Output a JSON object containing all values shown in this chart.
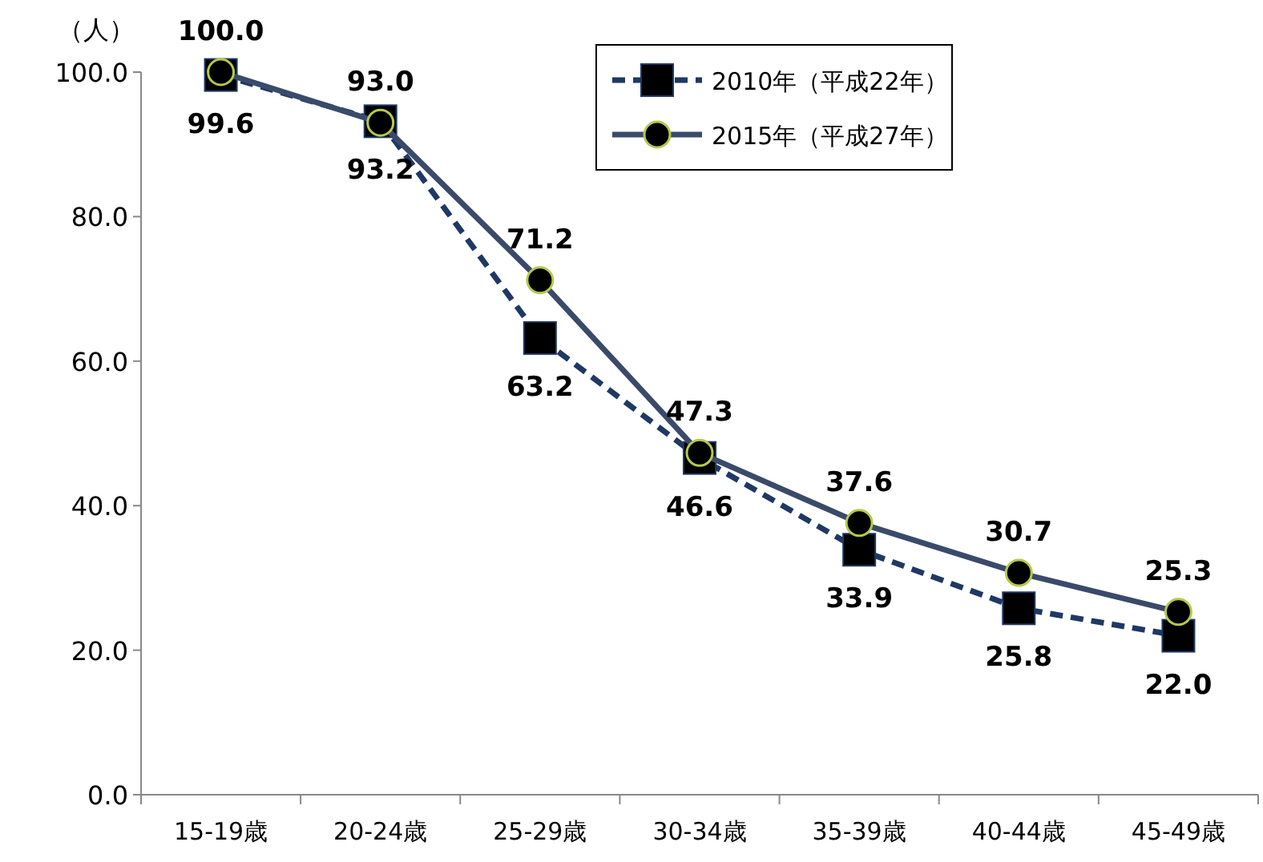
{
  "chart_data": {
    "type": "line",
    "ylabel": "（人）",
    "categories": [
      "15-19歳",
      "20-24歳",
      "25-29歳",
      "30-34歳",
      "35-39歳",
      "40-44歳",
      "45-49歳"
    ],
    "ylim": [
      0,
      100
    ],
    "yticks": [
      {
        "value": 0,
        "label": "0.0"
      },
      {
        "value": 20,
        "label": "20.0"
      },
      {
        "value": 40,
        "label": "40.0"
      },
      {
        "value": 60,
        "label": "60.0"
      },
      {
        "value": 80,
        "label": "80.0"
      },
      {
        "value": 100,
        "label": "100.0"
      }
    ],
    "series": [
      {
        "name": "2010年（平成22年）",
        "color": "#1f3864",
        "marker": "square",
        "line_style": "dashed",
        "values": [
          99.6,
          93.2,
          63.2,
          46.6,
          33.9,
          25.8,
          22.0
        ],
        "value_labels": [
          "99.6",
          "93.2",
          "63.2",
          "46.6",
          "33.9",
          "25.8",
          "22.0"
        ]
      },
      {
        "name": "2015年（平成27年）",
        "color": "#3a4a6a",
        "marker": "circle",
        "line_style": "solid",
        "values": [
          100.0,
          93.0,
          71.2,
          47.3,
          37.6,
          30.7,
          25.3
        ],
        "value_labels": [
          "100.0",
          "93.0",
          "71.2",
          "47.3",
          "37.6",
          "30.7",
          "25.3"
        ]
      }
    ],
    "legend": "top right",
    "grid": false
  }
}
